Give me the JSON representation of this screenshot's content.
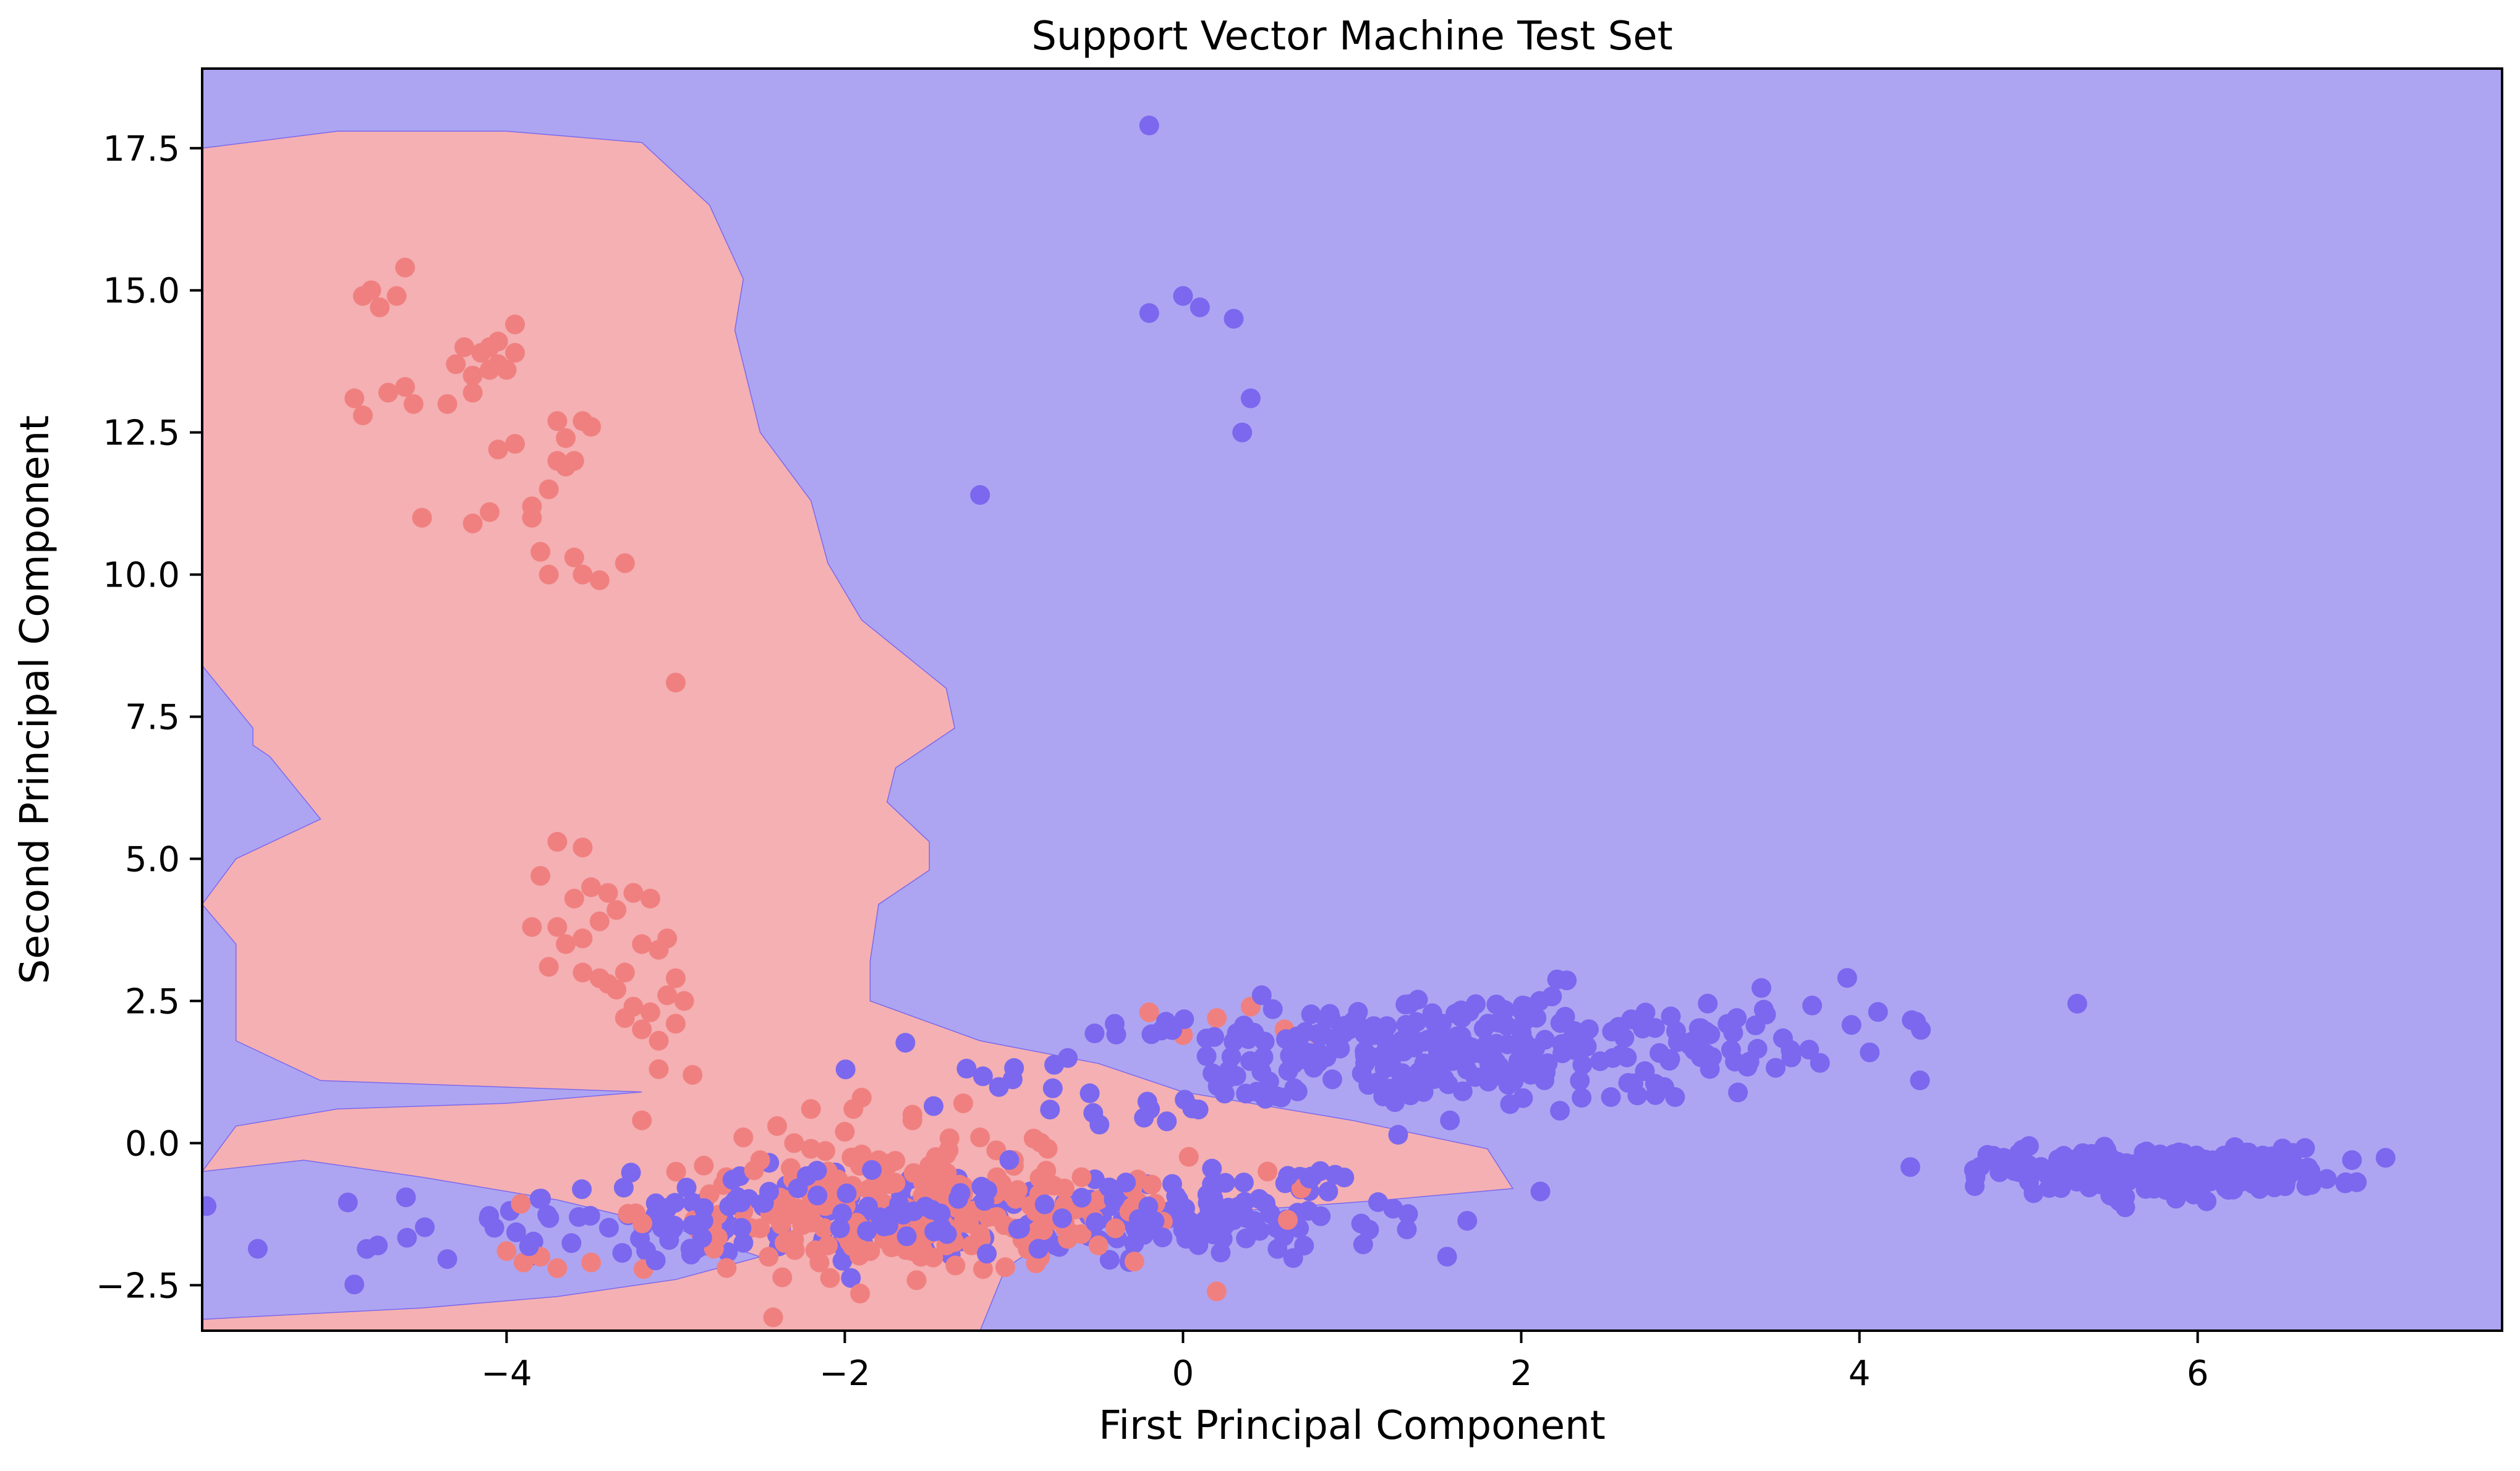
{
  "chart_data": {
    "type": "scatter",
    "title": "Support Vector Machine Test Set",
    "xlabel": "First Principal Component",
    "ylabel": "Second Principal Component",
    "xlim": [
      -5.8,
      7.8
    ],
    "ylim": [
      -3.3,
      18.9
    ],
    "x_ticks": [
      -4,
      -2,
      0,
      2,
      4,
      6
    ],
    "x_tick_labels": [
      "−4",
      "−2",
      "0",
      "2",
      "4",
      "6"
    ],
    "y_ticks": [
      -2.5,
      0.0,
      2.5,
      5.0,
      7.5,
      10.0,
      12.5,
      15.0,
      17.5
    ],
    "y_tick_labels": [
      "−2.5",
      "0.0",
      "2.5",
      "5.0",
      "7.5",
      "10.0",
      "12.5",
      "15.0",
      "17.5"
    ],
    "grid": false,
    "legend": "none",
    "colors": {
      "region_class_0": "#f4b0b3",
      "region_class_1": "#ada5f2",
      "points_class_0": "#f08080",
      "points_class_1": "#7b68ee"
    },
    "decision_regions": [
      {
        "class": 0,
        "description": "upper-left lobe",
        "boundary": [
          [
            -5.8,
            17.5
          ],
          [
            -5.0,
            17.8
          ],
          [
            -4.0,
            17.8
          ],
          [
            -3.2,
            17.6
          ],
          [
            -2.8,
            16.5
          ],
          [
            -2.6,
            15.2
          ],
          [
            -2.65,
            14.3
          ],
          [
            -2.5,
            12.5
          ],
          [
            -2.2,
            11.3
          ],
          [
            -2.1,
            10.2
          ],
          [
            -1.9,
            9.2
          ],
          [
            -1.4,
            8.0
          ],
          [
            -1.35,
            7.3
          ],
          [
            -1.7,
            6.6
          ],
          [
            -1.75,
            6.0
          ],
          [
            -1.5,
            5.3
          ],
          [
            -1.5,
            4.8
          ],
          [
            -1.8,
            4.2
          ],
          [
            -1.85,
            3.2
          ],
          [
            -1.85,
            2.5
          ],
          [
            -1.2,
            1.8
          ],
          [
            -0.5,
            1.4
          ],
          [
            0.0,
            0.9
          ],
          [
            1.0,
            0.4
          ],
          [
            1.8,
            -0.1
          ],
          [
            1.95,
            -0.8
          ],
          [
            1.2,
            -1.0
          ],
          [
            0.3,
            -1.2
          ],
          [
            -0.7,
            -1.5
          ],
          [
            -1.05,
            -2.2
          ],
          [
            -1.2,
            -3.3
          ],
          [
            -5.8,
            -3.3
          ],
          [
            -5.8,
            -3.1
          ],
          [
            -4.5,
            -2.9
          ],
          [
            -3.7,
            -2.7
          ],
          [
            -3.0,
            -2.4
          ],
          [
            -2.5,
            -2.0
          ],
          [
            -3.0,
            -1.5
          ],
          [
            -3.7,
            -1.0
          ],
          [
            -4.5,
            -0.6
          ],
          [
            -5.2,
            -0.3
          ],
          [
            -5.8,
            -0.5
          ],
          [
            -5.6,
            0.3
          ],
          [
            -5.0,
            0.6
          ],
          [
            -4.0,
            0.7
          ],
          [
            -3.2,
            0.9
          ],
          [
            -5.1,
            1.1
          ],
          [
            -5.6,
            1.8
          ],
          [
            -5.6,
            3.5
          ],
          [
            -5.8,
            4.2
          ],
          [
            -5.6,
            5.0
          ],
          [
            -5.1,
            5.7
          ],
          [
            -5.4,
            6.8
          ],
          [
            -5.5,
            7.0
          ],
          [
            -5.5,
            7.3
          ],
          [
            -5.8,
            8.4
          ]
        ]
      }
    ],
    "series": [
      {
        "class": 0,
        "color": "#f08080",
        "x": [
          -4.85,
          -4.8,
          -4.75,
          -4.65,
          -4.6,
          -4.7,
          -4.6,
          -4.55,
          -4.9,
          -4.85,
          -4.5,
          -4.3,
          -4.2,
          -4.15,
          -4.1,
          -4.05,
          -4.0,
          -3.95,
          -4.25,
          -4.35,
          -4.2,
          -4.1,
          -3.95,
          -4.05,
          -3.7,
          -3.65,
          -3.55,
          -3.5,
          -3.6,
          -3.65,
          -3.7,
          -3.75,
          -3.85,
          -3.95,
          -4.05,
          -4.2,
          -4.1,
          -3.85,
          -3.8,
          -3.75,
          -3.6,
          -3.55,
          -3.45,
          -3.3,
          -3.8,
          -3.7,
          -3.55,
          -3.5,
          -3.4,
          -3.6,
          -3.7,
          -3.85,
          -3.75,
          -3.65,
          -3.55,
          -3.45,
          -3.35,
          -3.25,
          -3.15,
          -3.05,
          -3.2,
          -3.1,
          -3.3,
          -3.4,
          -3.0,
          -3.05,
          -3.15,
          -3.25,
          -3.35,
          -3.45,
          -3.55,
          -3.2,
          -3.1,
          -3.3,
          -3.0,
          -2.95,
          -3.1,
          -2.9,
          -3.0,
          -3.2
        ],
        "y": [
          14.9,
          15.0,
          14.7,
          14.9,
          15.4,
          13.2,
          13.3,
          13.0,
          13.1,
          12.8,
          11.0,
          13.7,
          13.5,
          13.9,
          14.0,
          14.1,
          13.6,
          13.9,
          14.0,
          13.0,
          13.2,
          13.6,
          14.4,
          13.7,
          12.7,
          12.4,
          12.7,
          12.6,
          12.0,
          11.9,
          12.0,
          11.5,
          11.0,
          12.3,
          12.2,
          10.9,
          11.1,
          11.2,
          10.4,
          10.0,
          10.3,
          10.0,
          9.9,
          10.2,
          4.7,
          5.3,
          5.2,
          4.5,
          4.4,
          4.3,
          3.8,
          3.8,
          3.1,
          3.5,
          3.6,
          3.9,
          4.1,
          4.4,
          4.3,
          3.6,
          3.5,
          3.4,
          3.0,
          2.8,
          2.9,
          2.6,
          2.3,
          2.4,
          2.7,
          2.9,
          3.0,
          2.0,
          1.8,
          2.2,
          2.1,
          2.5,
          1.3,
          1.2,
          8.1,
          0.4
        ],
        "x_extra": [
          -2.8,
          -2.6,
          -2.5,
          -2.4,
          -2.3,
          -2.2,
          -2.1,
          -2.0,
          -1.9,
          -1.8,
          -1.7,
          -1.6,
          -1.5,
          -1.4,
          -1.3,
          -1.2,
          -1.1,
          -1.0,
          -0.9,
          -0.8,
          -0.7,
          -0.6,
          -0.5,
          -0.4,
          -2.7,
          -2.5,
          -2.3,
          -2.1,
          -1.9,
          -1.7,
          -1.5,
          -1.3,
          -1.1,
          -0.9,
          -0.7,
          -0.5,
          -2.6,
          -2.4,
          -2.2,
          -2.0,
          -1.8,
          -1.6,
          -1.4,
          -1.2,
          -1.0,
          -0.8,
          -0.6,
          -0.3,
          -2.35,
          -2.05,
          -1.75,
          -1.45,
          -1.15,
          -0.85,
          -0.55,
          -3.8,
          -3.7,
          -4.0,
          -3.9,
          -3.5,
          -0.2,
          0.0,
          0.2,
          0.4,
          0.6,
          0.8,
          0.5,
          0.7,
          -2.2,
          -1.9,
          -1.6,
          -1.3,
          -1.0,
          -2.45,
          -2.15,
          -1.85,
          -1.55,
          -1.25,
          -0.95,
          -0.65
        ],
        "y_extra": [
          -0.9,
          -1.2,
          -1.5,
          -1.3,
          -1.7,
          -1.4,
          -1.8,
          -1.6,
          -1.9,
          -1.5,
          -1.7,
          -1.9,
          -1.6,
          -1.8,
          -1.4,
          -1.6,
          -1.3,
          -1.5,
          -1.7,
          -1.2,
          -1.4,
          -1.6,
          -1.8,
          -1.5,
          -0.6,
          -0.3,
          0.0,
          -0.5,
          -0.2,
          -0.7,
          -0.4,
          -0.9,
          -0.6,
          -1.1,
          -0.8,
          -1.0,
          0.1,
          0.3,
          -0.1,
          0.2,
          -0.3,
          0.4,
          -0.2,
          0.1,
          -0.4,
          -0.1,
          -0.6,
          -0.8,
          -1.0,
          -1.1,
          -1.2,
          -1.0,
          -1.3,
          -0.9,
          -1.2,
          -2.0,
          -2.2,
          -1.9,
          -2.1,
          -2.1,
          2.3,
          1.9,
          2.2,
          2.4,
          2.0,
          1.9,
          -0.5,
          -0.8,
          0.6,
          0.8,
          0.5,
          0.7,
          -0.3,
          -2.0,
          -2.1,
          -1.9,
          -2.0,
          -1.8,
          -1.7,
          -1.6
        ]
      },
      {
        "class": 1,
        "color": "#7b68ee",
        "x": [
          -0.2,
          -0.2,
          0.0,
          0.1,
          0.3,
          0.4,
          0.35,
          -1.2
        ],
        "y": [
          17.9,
          14.6,
          14.9,
          14.7,
          14.5,
          13.1,
          12.5,
          11.4
        ],
        "cluster_center_a": [
          1.5,
          1.6
        ],
        "cluster_spread_a": [
          1.2,
          0.5
        ],
        "cluster_center_b": [
          5.8,
          -0.5
        ],
        "cluster_spread_b": [
          0.5,
          0.2
        ],
        "cluster_center_c": [
          -1.5,
          -1.3
        ],
        "cluster_spread_c": [
          1.5,
          0.4
        ],
        "cluster_center_d": [
          0.2,
          -1.4
        ],
        "cluster_spread_d": [
          0.5,
          0.3
        ]
      }
    ]
  }
}
